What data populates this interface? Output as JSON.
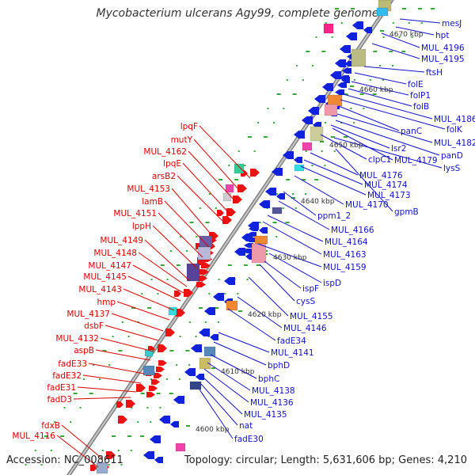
{
  "header": {
    "title": "Mycobacterium ulcerans Agy99, complete genome"
  },
  "footer": {
    "accession": "Accession: NC_008611",
    "topology": "Topology: circular; Length: 5,631,606 bp; Genes: 4,210"
  },
  "colors": {
    "backbone": "#9a9a9a",
    "forward_strand": "#ee1111",
    "reverse_strand": "#1122dd",
    "forward_label": "#dd0000",
    "reverse_label": "#1111cc",
    "tick": "#33aa33",
    "kbp_label": "#333333"
  },
  "map": {
    "kbp_ticks": [
      "4600 kbp",
      "4610 kbp",
      "4620 kbp",
      "4630 kbp",
      "4640 kbp",
      "4650 kbp",
      "4660 kbp",
      "4670 kbp"
    ],
    "forward_genes": [
      "lpqF",
      "mutY",
      "MUL_4162",
      "lpqE",
      "arsB2",
      "MUL_4153",
      "lamB",
      "MUL_4151",
      "lppH",
      "MUL_4149",
      "MUL_4148",
      "MUL_4147",
      "MUL_4145",
      "MUL_4143",
      "hmp",
      "MUL_4137",
      "dsbF",
      "MUL_4132",
      "aspB",
      "fadE33",
      "fadE32",
      "fadE31",
      "fadD3",
      "fdxB",
      "MUL_4116"
    ],
    "reverse_genes": [
      "mesJ",
      "hpt",
      "MUL_4196",
      "MUL_4195",
      "ftsH",
      "folE",
      "folP1",
      "folB",
      "MUL_4186",
      "folK",
      "panC",
      "MUL_4182",
      "panD",
      "lsr2",
      "clpC1",
      "MUL_4179",
      "lysS",
      "MUL_4176",
      "MUL_4174",
      "MUL_4173",
      "MUL_4170",
      "gpmB",
      "ppm1_2",
      "MUL_4166",
      "MUL_4164",
      "MUL_4163",
      "MUL_4159",
      "ispD",
      "ispF",
      "cysS",
      "MUL_4155",
      "MUL_4146",
      "fadE34",
      "MUL_4141",
      "bphD",
      "bphC",
      "MUL_4138",
      "MUL_4136",
      "MUL_4135",
      "nat",
      "fadE30"
    ]
  }
}
